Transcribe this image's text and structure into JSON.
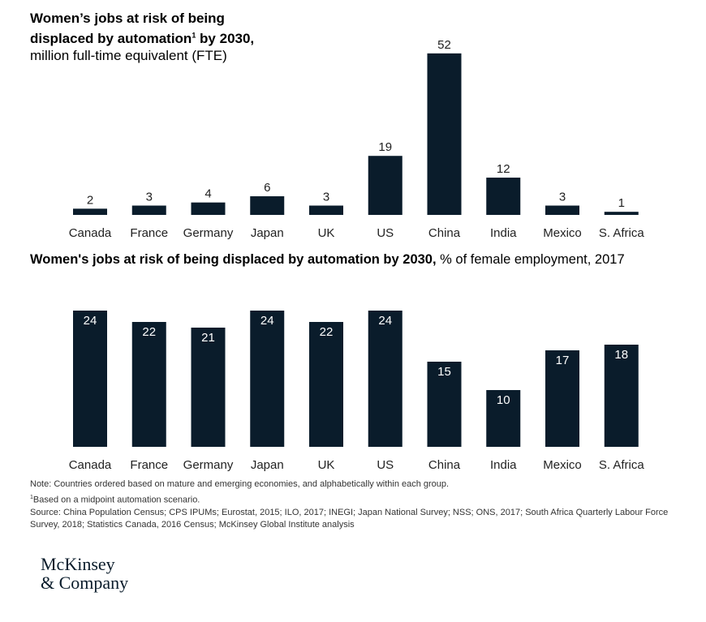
{
  "chart_data": [
    {
      "type": "bar",
      "title_bold_1": "Women’s jobs at risk of being",
      "title_bold_2": "displaced by automation",
      "title_sup": "1",
      "title_bold_3": " by 2030,",
      "subtitle": "million full-time equivalent (FTE)",
      "categories": [
        "Canada",
        "France",
        "Germany",
        "Japan",
        "UK",
        "US",
        "China",
        "India",
        "Mexico",
        "S. Africa"
      ],
      "values": [
        2,
        3,
        4,
        6,
        3,
        19,
        52,
        12,
        3,
        1
      ],
      "labels": [
        "2",
        "3",
        "4",
        "6",
        "3",
        "19",
        "52",
        "12",
        "3",
        "1"
      ],
      "label_position": "above"
    },
    {
      "type": "bar",
      "title_bold": "Women's jobs at risk of being displaced by automation by 2030,",
      "subtitle": " % of female employment, 2017",
      "categories": [
        "Canada",
        "France",
        "Germany",
        "Japan",
        "UK",
        "US",
        "China",
        "India",
        "Mexico",
        "S. Africa"
      ],
      "values": [
        24,
        22,
        21,
        24,
        22,
        24,
        15,
        10,
        17,
        18
      ],
      "labels": [
        "24",
        "22",
        "21",
        "24",
        "22",
        "24",
        "15",
        "10",
        "17",
        "18"
      ],
      "label_position": "inside-top"
    }
  ],
  "colors": {
    "bar": "#0a1c2b",
    "inside_label": "#ffffff",
    "label": "#222222"
  },
  "notes": {
    "note": "Note: Countries ordered based on mature and emerging economies, and alphabetically within each group.",
    "footnote_sup": "1",
    "footnote": "Based on a midpoint automation scenario.",
    "source": "Source: China Population Census; CPS IPUMs; Eurostat, 2015; ILO, 2017; INEGI; Japan National Survey; NSS; ONS, 2017; South Africa Quarterly Labour Force Survey, 2018; Statistics Canada, 2016 Census; McKinsey Global Institute analysis"
  },
  "logo": {
    "line1": "McKinsey",
    "line2": "& Company"
  }
}
